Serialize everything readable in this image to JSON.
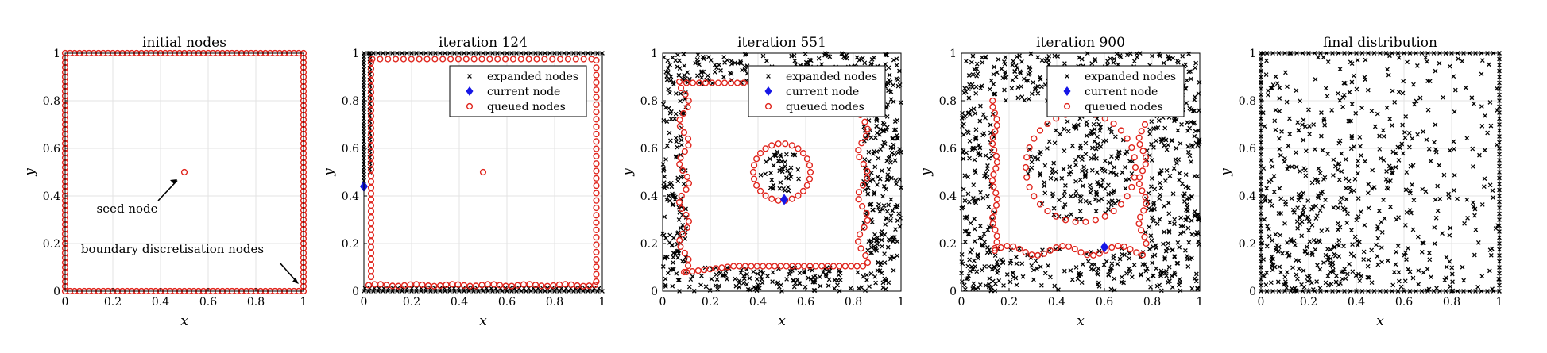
{
  "chart_data": [
    {
      "type": "scatter",
      "title": "initial nodes",
      "xlabel": "x",
      "ylabel": "y",
      "xlim": [
        0,
        1
      ],
      "ylim": [
        0,
        1
      ],
      "xticks": [
        "0",
        "0.2",
        "0.4",
        "0.6",
        "0.8",
        "1"
      ],
      "yticks": [
        "0",
        "0.2",
        "0.4",
        "0.6",
        "0.8",
        "1"
      ],
      "grid": true,
      "legend": null,
      "series": [
        {
          "marker": "red-circle",
          "points": "boundary",
          "spacing": 0.02
        },
        {
          "marker": "red-circle",
          "points": [
            [
              0.5,
              0.5
            ]
          ]
        }
      ],
      "annotations": [
        {
          "text": "seed node",
          "target": [
            0.49,
            0.48
          ]
        },
        {
          "text": "boundary discretisation nodes",
          "target": [
            0.99,
            0.01
          ]
        }
      ]
    },
    {
      "type": "scatter",
      "title": "iteration 124",
      "xlabel": "x",
      "ylabel": "y",
      "xlim": [
        0,
        1
      ],
      "ylim": [
        0,
        1
      ],
      "xticks": [
        "0",
        "0.2",
        "0.4",
        "0.6",
        "0.8",
        "1"
      ],
      "yticks": [
        "0",
        "0.2",
        "0.4",
        "0.6",
        "0.8",
        "1"
      ],
      "grid": true,
      "legend": {
        "placement": "top-right",
        "entries": [
          "expanded nodes",
          "current node",
          "queued nodes"
        ]
      },
      "current_node": [
        0.0,
        0.44
      ],
      "seed_node": [
        0.5,
        0.5
      ]
    },
    {
      "type": "scatter",
      "title": "iteration 551",
      "xlabel": "x",
      "ylabel": "y",
      "xlim": [
        0,
        1
      ],
      "ylim": [
        0,
        1
      ],
      "xticks": [
        "0",
        "0.2",
        "0.4",
        "0.6",
        "0.8",
        "1"
      ],
      "yticks": [
        "0",
        "0.2",
        "0.4",
        "0.6",
        "0.8",
        "1"
      ],
      "grid": true,
      "legend": {
        "placement": "top-right",
        "entries": [
          "expanded nodes",
          "current node",
          "queued nodes"
        ]
      },
      "current_node": [
        0.51,
        0.385
      ],
      "front_inner_circle": {
        "center": [
          0.5,
          0.5
        ],
        "radius": 0.12
      },
      "front_outer_box": [
        0.08,
        0.07,
        0.86,
        0.86
      ]
    },
    {
      "type": "scatter",
      "title": "iteration 900",
      "xlabel": "x",
      "ylabel": "y",
      "xlim": [
        0,
        1
      ],
      "ylim": [
        0,
        1
      ],
      "xticks": [
        "0",
        "0.2",
        "0.4",
        "0.6",
        "0.8",
        "1"
      ],
      "yticks": [
        "0",
        "0.2",
        "0.4",
        "0.6",
        "0.8",
        "1"
      ],
      "grid": true,
      "legend": {
        "placement": "top-right",
        "entries": [
          "expanded nodes",
          "current node",
          "queued nodes"
        ]
      },
      "current_node": [
        0.6,
        0.185
      ],
      "front_inner_circle": {
        "center": [
          0.5,
          0.52
        ],
        "radius": 0.23
      }
    },
    {
      "type": "scatter",
      "title": "final distribution",
      "xlabel": "x",
      "ylabel": "y",
      "xlim": [
        0,
        1
      ],
      "ylim": [
        0,
        1
      ],
      "xticks": [
        "0",
        "0.2",
        "0.4",
        "0.6",
        "0.8",
        "1"
      ],
      "yticks": [
        "0",
        "0.2",
        "0.4",
        "0.6",
        "0.8",
        "1"
      ],
      "grid": true,
      "legend": null
    }
  ],
  "colors": {
    "queued": "#e0251d",
    "current": "#1616e6",
    "expanded": "#000000",
    "grid": "#e3e3e3"
  }
}
